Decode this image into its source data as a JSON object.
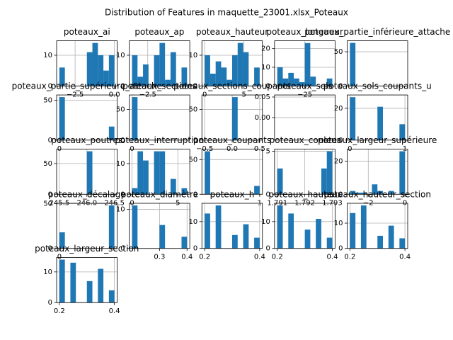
{
  "suptitle": "Distribution of Features in maquette_23001.xlsx_Poteaux",
  "chart_data": [
    {
      "type": "histogram",
      "title": "poteaux_ai",
      "bins": [
        -3.5,
        -3.15,
        -2.8,
        -2.45,
        -2.1,
        -1.75,
        -1.4,
        -1.05,
        -0.7,
        -0.35,
        0
      ],
      "values": [
        6,
        0,
        0,
        0,
        0,
        11,
        14,
        10,
        5,
        10
      ],
      "xlim": [
        -3.675,
        0.175
      ],
      "ylim": [
        0,
        14.7
      ],
      "xticks": [
        {
          "value": -2.5,
          "label": "−2.5"
        },
        {
          "value": 0,
          "label": "0.0"
        }
      ],
      "yticks": [
        0,
        10
      ],
      "color": "#1f77b4",
      "grid": true
    },
    {
      "type": "histogram",
      "title": "poteaux_ap",
      "bins": [
        -3.5,
        -3.15,
        -2.8,
        -2.45,
        -2.1,
        -1.75,
        -1.4,
        -1.05,
        -0.7,
        -0.35,
        0
      ],
      "values": [
        10,
        3,
        7,
        0,
        10,
        14,
        2,
        11,
        0,
        6
      ],
      "xlim": [
        -3.675,
        0.175
      ],
      "ylim": [
        0,
        14.7
      ],
      "xticks": [
        {
          "value": -2.5,
          "label": "−2.5"
        }
      ],
      "yticks": [
        0,
        10
      ],
      "color": "#1f77b4",
      "grid": true
    },
    {
      "type": "histogram",
      "title": "poteaux_hauteur",
      "bins": [
        0,
        0.7,
        1.4,
        2.1,
        2.8,
        3.5,
        4.2,
        4.9,
        5.6,
        6.3,
        7
      ],
      "values": [
        10,
        4,
        8,
        6,
        2,
        10,
        14,
        11,
        0,
        6
      ],
      "xlim": [
        -0.35,
        7.35
      ],
      "ylim": [
        0,
        14.7
      ],
      "xticks": [
        0,
        5
      ],
      "yticks": [
        0,
        10
      ],
      "color": "#1f77b4",
      "grid": true
    },
    {
      "type": "histogram",
      "title": "poteaux_longueur",
      "bins": [
        -50,
        -45,
        -40,
        -35,
        -30,
        -25,
        -20,
        -15,
        -10,
        -5,
        0
      ],
      "values": [
        10,
        4,
        7,
        4,
        2,
        23,
        5,
        0,
        0,
        4
      ],
      "xlim": [
        -52.5,
        2.5
      ],
      "ylim": [
        0,
        24.2
      ],
      "xticks": [
        {
          "value": -25,
          "label": "−25"
        }
      ],
      "yticks": [
        0,
        10,
        20
      ],
      "color": "#1f77b4",
      "grid": true
    },
    {
      "type": "histogram",
      "title": "poteaux_partie_inférieure_attache",
      "bins": [
        0,
        0.1,
        0.2,
        0.3,
        0.4,
        0.5,
        0.6,
        0.7,
        0.8,
        0.9,
        1
      ],
      "values": [
        63,
        0,
        0,
        0,
        0,
        0,
        0,
        0,
        0,
        0
      ],
      "xlim": [
        -0.05,
        1.05
      ],
      "ylim": [
        0,
        66
      ],
      "xticks": [],
      "yticks": [
        0,
        50
      ],
      "color": "#1f77b4",
      "grid": true
    },
    {
      "type": "histogram",
      "title": "poteaux_partie_supérieure_attache",
      "bins": [
        0,
        0.1,
        0.2,
        0.3,
        0.4,
        0.5,
        0.6,
        0.7,
        0.8,
        0.9,
        1
      ],
      "values": [
        54,
        0,
        0,
        0,
        0,
        0,
        0,
        0,
        0,
        17
      ],
      "xlim": [
        -0.05,
        1.05
      ],
      "ylim": [
        0,
        56.7
      ],
      "xticks": [
        0
      ],
      "yticks": [
        0,
        50
      ],
      "color": "#1f77b4",
      "grid": true
    },
    {
      "type": "histogram",
      "title": "poteaux_sections",
      "bins": [
        0,
        0.1,
        0.2,
        0.3,
        0.4,
        0.5,
        0.6,
        0.7,
        0.8,
        0.9,
        1
      ],
      "values": [
        70,
        0,
        0,
        0,
        0,
        0,
        0,
        0,
        0,
        0
      ],
      "xlim": [
        -0.05,
        1.05
      ],
      "ylim": [
        0,
        73.5
      ],
      "xticks": [
        0
      ],
      "yticks": [
        0,
        50
      ],
      "color": "#1f77b4",
      "grid": true
    },
    {
      "type": "histogram",
      "title": "poteaux_sections_coupants",
      "bins": [
        -0.5,
        -0.4,
        -0.3,
        -0.2,
        -0.1,
        0,
        0.1,
        0.2,
        0.3,
        0.4,
        0.5
      ],
      "values": [
        0,
        0,
        0,
        0,
        0,
        70,
        0,
        0,
        0,
        0
      ],
      "xlim": [
        -0.55,
        0.55
      ],
      "ylim": [
        0,
        73.5
      ],
      "xticks": [
        {
          "value": -0.5,
          "label": "−0.5"
        },
        {
          "value": 0,
          "label": "0.0"
        },
        {
          "value": 0.5,
          "label": "0.5"
        }
      ],
      "yticks": [
        0,
        50
      ],
      "color": "#1f77b4",
      "grid": true
    },
    {
      "type": "histogram",
      "title": "poteaux_sols",
      "bins": [
        0,
        0.1,
        0.2,
        0.3,
        0.4,
        0.5,
        0.6,
        0.7,
        0.8,
        0.9,
        1
      ],
      "values": [
        0,
        0,
        0,
        0,
        0,
        0,
        0,
        0,
        0,
        0
      ],
      "xlim": [
        -0.05,
        1.05
      ],
      "ylim": [
        -0.055,
        0.055
      ],
      "xticks": [],
      "yticks": [
        {
          "value": 0,
          "label": "0.00"
        },
        {
          "value": 0.05,
          "label": "0.05"
        }
      ],
      "color": "#1f77b4",
      "grid": true
    },
    {
      "type": "histogram",
      "title": "poteaux_sols_coupants_u",
      "bins": [
        0,
        0.1,
        0.2,
        0.3,
        0.4,
        0.5,
        0.6,
        0.7,
        0.8,
        0.9,
        1
      ],
      "values": [
        27,
        0,
        0,
        0,
        0,
        21,
        0,
        0,
        0,
        10
      ],
      "xlim": [
        -0.05,
        1.05
      ],
      "ylim": [
        0,
        28.4
      ],
      "xticks": [
        0,
        1
      ],
      "yticks": [
        0,
        20
      ],
      "color": "#1f77b4",
      "grid": true
    },
    {
      "type": "histogram",
      "title": "poteaux_poutres",
      "bins": [
        245.5,
        245.6,
        245.7,
        245.8,
        245.9,
        246,
        246.1,
        246.2,
        246.3,
        246.4,
        246.5
      ],
      "values": [
        0,
        0,
        0,
        0,
        0,
        70,
        0,
        0,
        0,
        0
      ],
      "xlim": [
        245.45,
        246.55
      ],
      "ylim": [
        0,
        73.5
      ],
      "xticks": [
        {
          "value": 245.5,
          "label": "245.5"
        },
        {
          "value": 246,
          "label": "246.0"
        },
        {
          "value": 246.5,
          "label": "246.5"
        }
      ],
      "yticks": [
        0,
        50
      ],
      "color": "#1f77b4",
      "grid": true
    },
    {
      "type": "histogram",
      "title": "poteaux_interruption",
      "bins": [
        0,
        0.6,
        1.2,
        1.8,
        2.4,
        3,
        3.6,
        4.2,
        4.8,
        5.4,
        6
      ],
      "values": [
        2,
        14,
        11,
        0,
        14,
        14,
        0,
        5,
        0,
        2
      ],
      "xlim": [
        -0.3,
        6.3
      ],
      "ylim": [
        0,
        14.7
      ],
      "xticks": [
        0,
        5
      ],
      "yticks": [
        0,
        10
      ],
      "color": "#1f77b4",
      "grid": true
    },
    {
      "type": "histogram",
      "title": "poteaux_coupants",
      "bins": [
        0,
        0.1,
        0.2,
        0.3,
        0.4,
        0.5,
        0.6,
        0.7,
        0.8,
        0.9,
        1
      ],
      "values": [
        62,
        0,
        0,
        0,
        0,
        0,
        0,
        0,
        0,
        12
      ],
      "xlim": [
        -0.05,
        1.05
      ],
      "ylim": [
        0,
        65.1
      ],
      "xticks": [
        1
      ],
      "yticks": [
        0,
        50
      ],
      "color": "#1f77b4",
      "grid": true
    },
    {
      "type": "histogram",
      "title": "poteaux_couleur",
      "bins": [
        1.791,
        1.7912,
        1.7914,
        1.7916,
        1.7918,
        1.792,
        1.7922,
        1.7924,
        1.7926,
        1.7928,
        1.793
      ],
      "values": [
        3,
        0,
        0,
        0,
        0,
        0,
        0,
        0,
        3,
        5
      ],
      "xlim": [
        1.7909,
        1.7931
      ],
      "ylim": [
        0,
        5.25
      ],
      "xticks": [
        {
          "value": 1.791,
          "label": "1.791"
        },
        {
          "value": 1.792,
          "label": "1.792"
        },
        {
          "value": 1.793,
          "label": "1.793"
        }
      ],
      "yticks": [
        0,
        5
      ],
      "color": "#1f77b4",
      "grid": true
    },
    {
      "type": "histogram",
      "title": "poteaux_largeur_supérieure",
      "bins": [
        -3,
        -2.7,
        -2.4,
        -2.1,
        -1.8,
        -1.5,
        -1.2,
        -0.9,
        -0.6,
        -0.3,
        0
      ],
      "values": [
        2,
        1,
        1,
        0,
        6,
        2,
        0,
        2,
        0,
        26
      ],
      "xlim": [
        -3.15,
        0.15
      ],
      "ylim": [
        0,
        27.3
      ],
      "xticks": [
        {
          "value": -2,
          "label": "−2"
        },
        {
          "value": 0,
          "label": "0"
        }
      ],
      "yticks": [
        0,
        20
      ],
      "color": "#1f77b4",
      "grid": true
    },
    {
      "type": "histogram",
      "title": "poteaux_décalage",
      "bins": [
        0,
        0.1,
        0.2,
        0.3,
        0.4,
        0.5,
        0.6,
        0.7,
        0.8,
        0.9,
        1
      ],
      "values": [
        18,
        0,
        0,
        0,
        0,
        0,
        0,
        0,
        0,
        48
      ],
      "xlim": [
        -0.05,
        1.05
      ],
      "ylim": [
        0,
        50.4
      ],
      "xticks": [
        0
      ],
      "yticks": [
        0,
        50
      ],
      "color": "#1f77b4",
      "grid": true
    },
    {
      "type": "histogram",
      "title": "poteaux_diamètre",
      "bins": [
        0.2,
        0.22,
        0.24,
        0.26,
        0.28,
        0.3,
        0.32,
        0.34,
        0.36,
        0.38,
        0.4
      ],
      "values": [
        11,
        0,
        0,
        0,
        0,
        6,
        0,
        0,
        0,
        3
      ],
      "xlim": [
        0.19,
        0.41
      ],
      "ylim": [
        0,
        11.55
      ],
      "xticks": [
        0.3,
        0.4
      ],
      "yticks": [
        0,
        10
      ],
      "color": "#1f77b4",
      "grid": true
    },
    {
      "type": "histogram",
      "title": "poteaux_h",
      "bins": [
        0.2,
        0.22,
        0.24,
        0.26,
        0.28,
        0.3,
        0.32,
        0.34,
        0.36,
        0.38,
        0.4
      ],
      "values": [
        13,
        0,
        16,
        0,
        0,
        5,
        0,
        9,
        0,
        4
      ],
      "xlim": [
        0.19,
        0.41
      ],
      "ylim": [
        0,
        16.8
      ],
      "xticks": [
        0.2,
        0.4
      ],
      "yticks": [
        0,
        10
      ],
      "color": "#1f77b4",
      "grid": true
    },
    {
      "type": "histogram",
      "title": "poteaux_hauteur",
      "bins": [
        0.2,
        0.22,
        0.24,
        0.26,
        0.28,
        0.3,
        0.32,
        0.34,
        0.36,
        0.38,
        0.4
      ],
      "values": [
        16,
        0,
        13,
        0,
        0,
        7,
        0,
        11,
        0,
        4
      ],
      "xlim": [
        0.19,
        0.41
      ],
      "ylim": [
        0,
        16.8
      ],
      "xticks": [
        0.2,
        0.4
      ],
      "yticks": [
        0,
        10
      ],
      "color": "#1f77b4",
      "grid": true
    },
    {
      "type": "histogram",
      "title": "poteaux_hauteur_section",
      "bins": [
        0.2,
        0.22,
        0.24,
        0.26,
        0.28,
        0.3,
        0.32,
        0.34,
        0.36,
        0.38,
        0.4
      ],
      "values": [
        14,
        0,
        17,
        0,
        0,
        5,
        0,
        9,
        0,
        4
      ],
      "xlim": [
        0.19,
        0.41
      ],
      "ylim": [
        0,
        17.85
      ],
      "xticks": [
        0.2,
        0.4
      ],
      "yticks": [
        0,
        10
      ],
      "color": "#1f77b4",
      "grid": true
    },
    {
      "type": "histogram",
      "title": "poteaux_largeur_section",
      "bins": [
        0.2,
        0.22,
        0.24,
        0.26,
        0.28,
        0.3,
        0.32,
        0.34,
        0.36,
        0.38,
        0.4
      ],
      "values": [
        14,
        0,
        13,
        0,
        0,
        7,
        0,
        11,
        0,
        4
      ],
      "xlim": [
        0.19,
        0.41
      ],
      "ylim": [
        0,
        14.7
      ],
      "xticks": [
        0.2,
        0.4
      ],
      "yticks": [
        0,
        10
      ],
      "color": "#1f77b4",
      "grid": true
    }
  ]
}
